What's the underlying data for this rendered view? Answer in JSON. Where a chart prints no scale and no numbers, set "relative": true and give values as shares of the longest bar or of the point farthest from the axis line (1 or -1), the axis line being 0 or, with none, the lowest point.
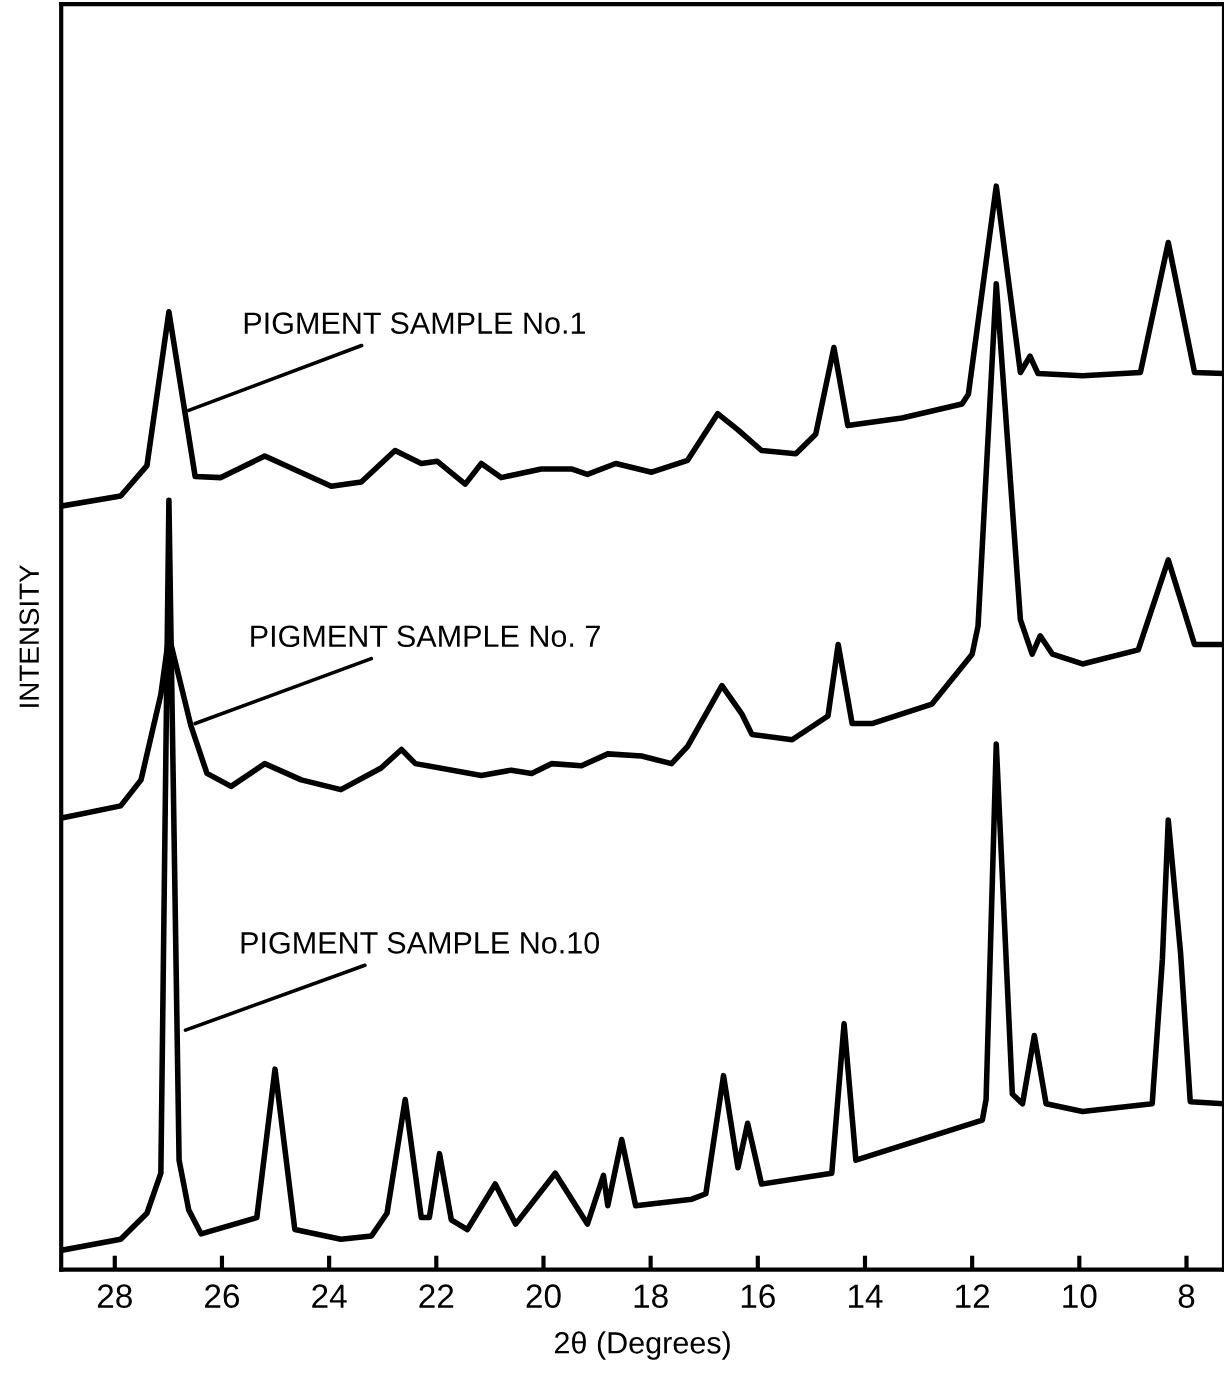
{
  "chart_data": {
    "type": "line",
    "relative": true,
    "xlabel": "2θ (Degrees)",
    "ylabel": "INTENSITY",
    "xlim": [
      29,
      7.3
    ],
    "xticks": [
      28,
      26,
      24,
      22,
      20,
      18,
      16,
      14,
      12,
      10,
      8
    ],
    "grid": false,
    "legend": false,
    "marker": "none",
    "line_style": "solid",
    "series": [
      {
        "color": "#000000",
        "x": [
          28.97,
          27.89,
          27.4,
          26.99,
          26.5,
          26.02,
          25.2,
          23.96,
          23.4,
          22.77,
          22.28,
          21.98,
          21.46,
          21.16,
          20.79,
          20.04,
          19.48,
          19.18,
          18.65,
          17.98,
          17.31,
          16.75,
          16.37,
          15.93,
          15.29,
          14.92,
          14.58,
          14.32,
          13.31,
          12.19,
          12.07,
          11.55,
          11.1,
          10.92,
          10.77,
          9.94,
          8.86,
          8.34,
          7.85,
          7.3
        ],
        "values": [
          0.705,
          0.714,
          0.742,
          0.884,
          0.732,
          0.731,
          0.751,
          0.723,
          0.727,
          0.756,
          0.744,
          0.746,
          0.725,
          0.744,
          0.731,
          0.739,
          0.739,
          0.734,
          0.744,
          0.736,
          0.747,
          0.79,
          0.775,
          0.756,
          0.753,
          0.771,
          0.851,
          0.779,
          0.786,
          0.799,
          0.808,
          1.0,
          0.828,
          0.843,
          0.827,
          0.825,
          0.828,
          0.948,
          0.828,
          0.827
        ]
      },
      {
        "color": "#000000",
        "x": [
          28.97,
          27.89,
          27.51,
          27.14,
          26.99,
          26.58,
          26.28,
          25.83,
          25.2,
          24.52,
          23.78,
          23.03,
          22.65,
          22.39,
          21.16,
          20.6,
          20.22,
          19.85,
          19.29,
          18.8,
          18.17,
          17.61,
          17.31,
          16.67,
          16.3,
          16.11,
          15.36,
          14.69,
          14.5,
          14.24,
          13.87,
          12.75,
          12.0,
          11.89,
          11.55,
          11.1,
          10.88,
          10.73,
          10.5,
          9.94,
          8.9,
          8.34,
          7.85,
          7.3
        ],
        "values": [
          0.417,
          0.428,
          0.452,
          0.531,
          0.585,
          0.502,
          0.458,
          0.446,
          0.467,
          0.452,
          0.443,
          0.463,
          0.48,
          0.467,
          0.456,
          0.461,
          0.458,
          0.467,
          0.465,
          0.476,
          0.474,
          0.467,
          0.483,
          0.539,
          0.513,
          0.494,
          0.489,
          0.511,
          0.577,
          0.504,
          0.504,
          0.522,
          0.568,
          0.594,
          0.91,
          0.6,
          0.568,
          0.585,
          0.568,
          0.559,
          0.572,
          0.655,
          0.577,
          0.577
        ]
      },
      {
        "color": "#000000",
        "x": [
          28.97,
          27.89,
          27.4,
          27.14,
          26.99,
          26.8,
          26.62,
          26.39,
          25.35,
          25.01,
          24.64,
          23.78,
          23.21,
          22.92,
          22.58,
          22.28,
          22.13,
          21.94,
          21.72,
          21.42,
          20.9,
          20.52,
          19.78,
          19.18,
          18.88,
          18.8,
          18.54,
          18.28,
          17.23,
          16.97,
          16.64,
          16.37,
          16.19,
          15.93,
          14.62,
          14.39,
          14.17,
          11.81,
          11.74,
          11.55,
          11.25,
          11.06,
          10.84,
          10.62,
          9.94,
          8.64,
          8.45,
          8.34,
          8.11,
          7.93,
          7.3
        ],
        "values": [
          0.018,
          0.028,
          0.052,
          0.089,
          0.71,
          0.101,
          0.055,
          0.033,
          0.048,
          0.185,
          0.037,
          0.028,
          0.031,
          0.052,
          0.157,
          0.048,
          0.048,
          0.107,
          0.046,
          0.037,
          0.079,
          0.042,
          0.089,
          0.042,
          0.087,
          0.059,
          0.12,
          0.059,
          0.065,
          0.07,
          0.179,
          0.094,
          0.135,
          0.079,
          0.089,
          0.227,
          0.101,
          0.138,
          0.157,
          0.485,
          0.162,
          0.153,
          0.216,
          0.153,
          0.146,
          0.153,
          0.286,
          0.415,
          0.292,
          0.155,
          0.153
        ]
      }
    ],
    "annotations": [
      {
        "text": "PIGMENT SAMPLE No.1",
        "x": 26.62,
        "y": 0.793
      },
      {
        "text": "PIGMENT SAMPLE No. 7",
        "x": 26.5,
        "y": 0.504
      },
      {
        "text": "PIGMENT SAMPLE No.10",
        "x": 26.68,
        "y": 0.221
      }
    ]
  }
}
